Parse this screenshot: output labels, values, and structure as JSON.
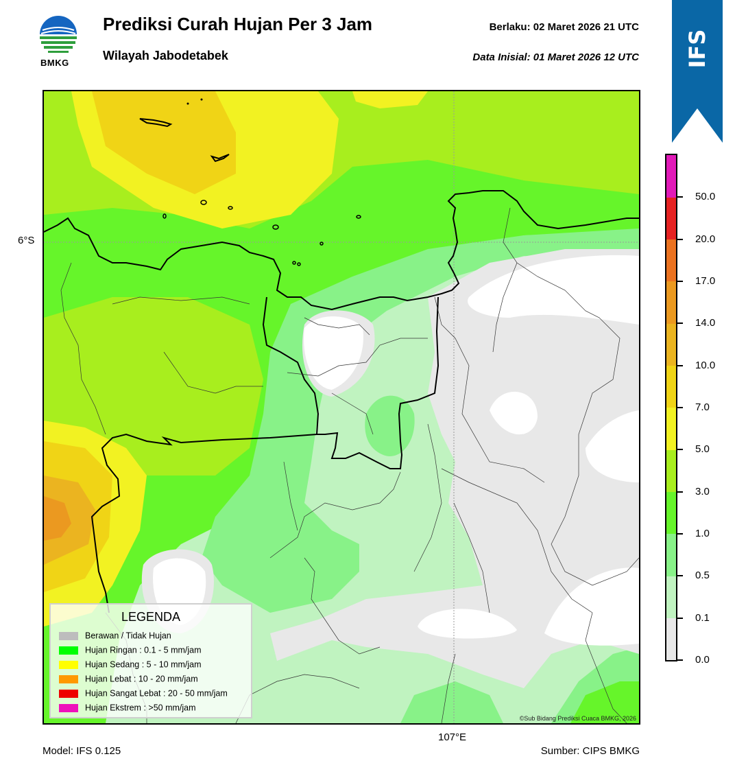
{
  "header": {
    "title": "Prediksi Curah Hujan Per 3 Jam",
    "subtitle": "Wilayah Jabodetabek",
    "valid_label": "Berlaku:  02 Maret 2026 21 UTC",
    "init_label": "Data Inisial:  01 Maret 2026 12 UTC"
  },
  "logo": {
    "text": "BMKG",
    "icon": "bmkg-logo"
  },
  "badge": {
    "text": "IFS",
    "color": "#0a67a6"
  },
  "footer": {
    "model": "Model: IFS 0.125",
    "source": "Sumber: CIPS BMKG"
  },
  "map": {
    "lat_label": "6°S",
    "lon_label": "107°E",
    "copyright": "©Sub Bidang Prediksi Cuaca BMKG, 2026"
  },
  "legend": {
    "title": "LEGENDA",
    "items": [
      {
        "label": "Berawan / Tidak Hujan",
        "color": "#bdbdbd"
      },
      {
        "label": "Hujan Ringan : 0.1 - 5 mm/jam",
        "color": "#00ff00"
      },
      {
        "label": "Hujan Sedang : 5 - 10 mm/jam",
        "color": "#ffff00"
      },
      {
        "label": "Hujan Lebat : 10 - 20 mm/jam",
        "color": "#ff9900"
      },
      {
        "label": "Hujan Sangat Lebat : 20 - 50 mm/jam",
        "color": "#ee0000"
      },
      {
        "label": "Hujan Ekstrem : >50 mm/jam",
        "color": "#ee11bb"
      }
    ]
  },
  "colorbar": {
    "ticks": [
      "0.0",
      "0.1",
      "0.5",
      "1.0",
      "3.0",
      "5.0",
      "7.0",
      "10.0",
      "14.0",
      "17.0",
      "20.0",
      "50.0"
    ],
    "colors": [
      "#e8e8e8",
      "#c0f3c0",
      "#88f288",
      "#66f52a",
      "#a8ee1e",
      "#f2f222",
      "#f0d416",
      "#ebb420",
      "#eb9920",
      "#eb7220",
      "#e62222",
      "#e11ab8"
    ]
  }
}
